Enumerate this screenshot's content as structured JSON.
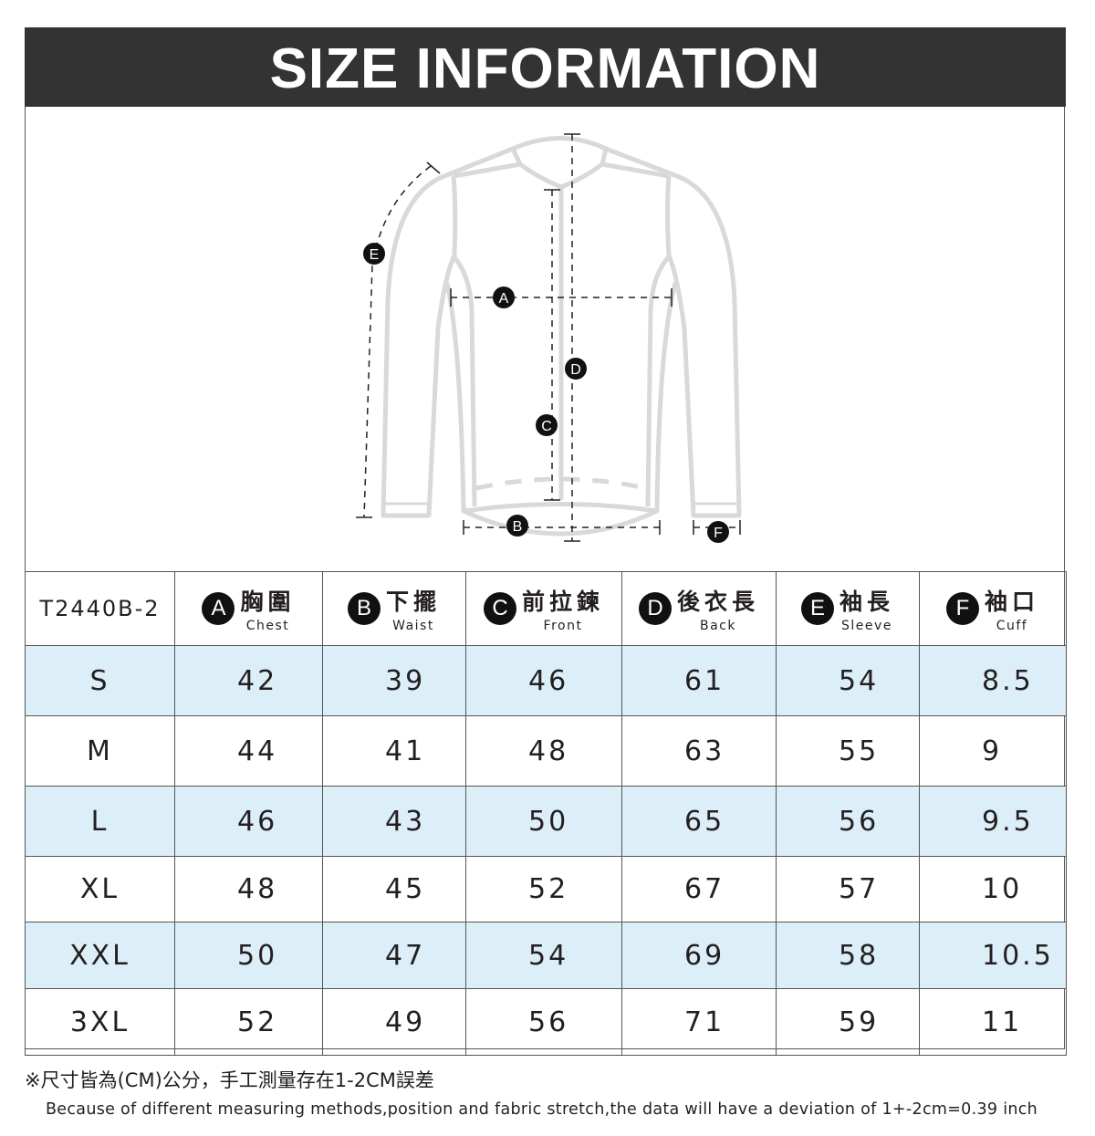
{
  "title": "SIZE INFORMATION",
  "diagram": {
    "markers": [
      "A",
      "B",
      "C",
      "D",
      "E",
      "F"
    ]
  },
  "table": {
    "model": "T2440B-2",
    "headers": [
      {
        "badge": "A",
        "zh": "胸圍",
        "en": "Chest"
      },
      {
        "badge": "B",
        "zh": "下擺",
        "en": "Waist"
      },
      {
        "badge": "C",
        "zh": "前拉鍊",
        "en": "Front"
      },
      {
        "badge": "D",
        "zh": "後衣長",
        "en": "Back"
      },
      {
        "badge": "E",
        "zh": "袖長",
        "en": "Sleeve"
      },
      {
        "badge": "F",
        "zh": "袖口",
        "en": "Cuff"
      }
    ],
    "rows": [
      {
        "size": "S",
        "values": [
          "42",
          "39",
          "46",
          "61",
          "54",
          "8.5"
        ]
      },
      {
        "size": "M",
        "values": [
          "44",
          "41",
          "48",
          "63",
          "55",
          "9"
        ]
      },
      {
        "size": "L",
        "values": [
          "46",
          "43",
          "50",
          "65",
          "56",
          "9.5"
        ]
      },
      {
        "size": "XL",
        "values": [
          "48",
          "45",
          "52",
          "67",
          "57",
          "10"
        ]
      },
      {
        "size": "XXL",
        "values": [
          "50",
          "47",
          "54",
          "69",
          "58",
          "10.5"
        ]
      },
      {
        "size": "3XL",
        "values": [
          "52",
          "49",
          "56",
          "71",
          "59",
          "11"
        ]
      }
    ],
    "alt_row_color": "#dceef8"
  },
  "notes": {
    "zh": "※尺寸皆為(CM)公分，手工測量存在1-2CM誤差",
    "en": "Because of different measuring methods,position and fabric stretch,the data will have a deviation of 1+-2cm=0.39 inch"
  }
}
